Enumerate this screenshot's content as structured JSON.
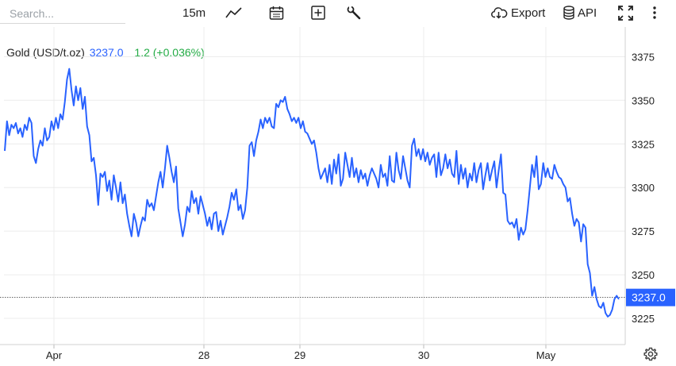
{
  "toolbar": {
    "search_placeholder": "Search...",
    "interval": "15m",
    "export_label": "Export",
    "api_label": "API"
  },
  "legend": {
    "symbol": "Gold (USD/t.oz)",
    "price": "3237.0",
    "change": "1.2 (+0.036%)"
  },
  "colors": {
    "line": "#2962ff",
    "change_positive": "#22ab44",
    "badge": "#2962ff"
  },
  "chart_data": {
    "type": "line",
    "title": "",
    "xlabel": "",
    "ylabel": "",
    "series": [
      {
        "name": "Gold (USD/t.oz)",
        "values": [
          3321,
          3338,
          3330,
          3336,
          3334,
          3337,
          3331,
          3334,
          3329,
          3336,
          3333,
          3340,
          3337,
          3318,
          3314,
          3322,
          3327,
          3324,
          3334,
          3327,
          3329,
          3338,
          3333,
          3340,
          3334,
          3342,
          3339,
          3349,
          3362,
          3368,
          3356,
          3347,
          3358,
          3350,
          3357,
          3345,
          3352,
          3335,
          3330,
          3315,
          3317,
          3307,
          3290,
          3308,
          3306,
          3309,
          3298,
          3304,
          3293,
          3307,
          3300,
          3292,
          3303,
          3291,
          3296,
          3285,
          3278,
          3272,
          3285,
          3280,
          3272,
          3278,
          3283,
          3281,
          3293,
          3289,
          3291,
          3287,
          3295,
          3303,
          3309,
          3300,
          3311,
          3324,
          3317,
          3309,
          3303,
          3312,
          3288,
          3280,
          3272,
          3279,
          3289,
          3286,
          3298,
          3291,
          3294,
          3285,
          3295,
          3290,
          3285,
          3278,
          3283,
          3276,
          3285,
          3286,
          3275,
          3281,
          3273,
          3278,
          3283,
          3289,
          3297,
          3293,
          3299,
          3287,
          3290,
          3282,
          3287,
          3300,
          3324,
          3326,
          3318,
          3327,
          3332,
          3339,
          3334,
          3340,
          3337,
          3340,
          3335,
          3334,
          3348,
          3346,
          3350,
          3349,
          3352,
          3345,
          3342,
          3338,
          3340,
          3337,
          3340,
          3334,
          3338,
          3332,
          3331,
          3328,
          3325,
          3327,
          3320,
          3311,
          3305,
          3308,
          3311,
          3303,
          3313,
          3302,
          3316,
          3308,
          3319,
          3301,
          3305,
          3320,
          3313,
          3306,
          3317,
          3306,
          3311,
          3303,
          3310,
          3305,
          3308,
          3301,
          3307,
          3311,
          3308,
          3305,
          3300,
          3313,
          3306,
          3308,
          3301,
          3318,
          3304,
          3303,
          3320,
          3310,
          3305,
          3318,
          3311,
          3304,
          3300,
          3324,
          3328,
          3318,
          3322,
          3316,
          3322,
          3315,
          3320,
          3313,
          3317,
          3319,
          3306,
          3320,
          3307,
          3311,
          3319,
          3311,
          3316,
          3308,
          3306,
          3321,
          3302,
          3313,
          3305,
          3311,
          3300,
          3308,
          3304,
          3314,
          3303,
          3310,
          3314,
          3299,
          3307,
          3314,
          3304,
          3310,
          3315,
          3300,
          3310,
          3319,
          3297,
          3296,
          3281,
          3279,
          3280,
          3277,
          3282,
          3270,
          3277,
          3273,
          3276,
          3287,
          3300,
          3313,
          3306,
          3318,
          3299,
          3302,
          3314,
          3306,
          3311,
          3306,
          3305,
          3313,
          3309,
          3306,
          3305,
          3302,
          3300,
          3292,
          3294,
          3285,
          3278,
          3282,
          3280,
          3269,
          3279,
          3277,
          3256,
          3251,
          3238,
          3243,
          3236,
          3232,
          3231,
          3234,
          3228,
          3226,
          3227,
          3230,
          3236,
          3238,
          3236
        ]
      }
    ],
    "x_ticks": [
      "Apr",
      "28",
      "29",
      "30",
      "May"
    ],
    "ylim": [
      3210,
      3392
    ],
    "y_ticks": [
      3225,
      3250,
      3275,
      3300,
      3325,
      3350,
      3375
    ],
    "last_value": 3237.0,
    "grid": true,
    "y_axis_position": "right"
  }
}
